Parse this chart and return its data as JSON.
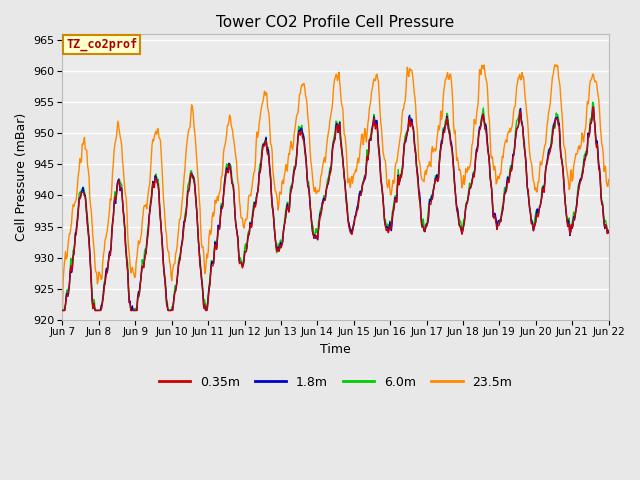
{
  "title": "Tower CO2 Profile Cell Pressure",
  "xlabel": "Time",
  "ylabel": "Cell Pressure (mBar)",
  "ylim": [
    920,
    966
  ],
  "yticks": [
    920,
    925,
    930,
    935,
    940,
    945,
    950,
    955,
    960,
    965
  ],
  "annotation_text": "TZ_co2prof",
  "annotation_bg": "#ffffcc",
  "annotation_border": "#cc8800",
  "line_colors": {
    "0.35m": "#cc0000",
    "1.8m": "#0000cc",
    "6.0m": "#00cc00",
    "23.5m": "#ff8800"
  },
  "legend_labels": [
    "0.35m",
    "1.8m",
    "6.0m",
    "23.5m"
  ],
  "fig_bg_color": "#e8e8e8",
  "plot_bg": "#ebebeb",
  "tick_labels": [
    "Jun 7",
    "Jun 8",
    "Jun 9",
    "Jun 10",
    "Jun 11",
    "Jun 12",
    "Jun 13",
    "Jun 14",
    "Jun 15",
    "Jun 16",
    "Jun 17",
    "Jun 18",
    "Jun 19",
    "Jun 20",
    "Jun 21",
    "Jun 22"
  ]
}
